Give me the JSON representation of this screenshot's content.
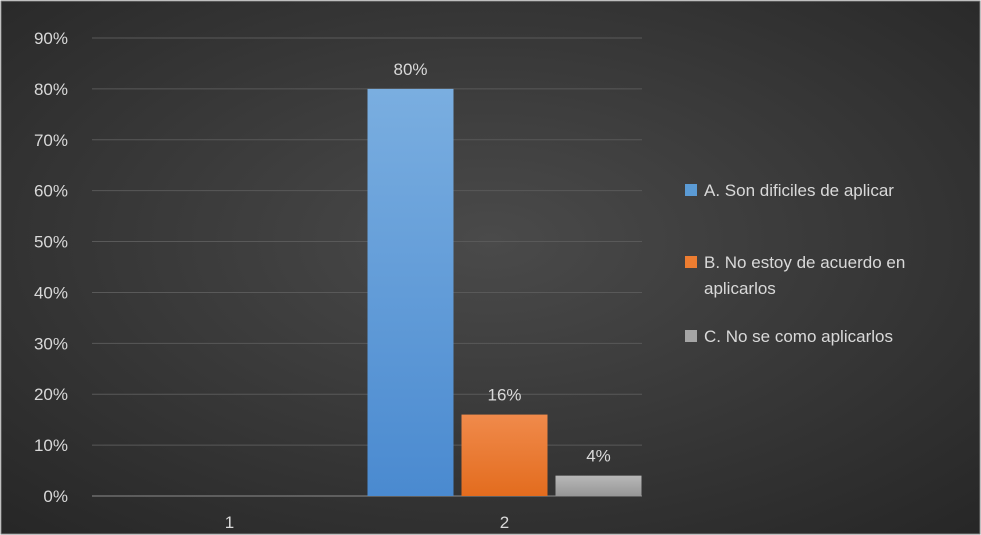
{
  "chart_data": {
    "type": "bar",
    "categories": [
      "1",
      "2"
    ],
    "series": [
      {
        "name": "A. Son dificiles de aplicar",
        "values": [
          null,
          0.8
        ],
        "labels": [
          "",
          "80%"
        ],
        "color": "#5b9bd5"
      },
      {
        "name": "B. No estoy de acuerdo en aplicarlos",
        "values": [
          null,
          0.16
        ],
        "labels": [
          "",
          "16%"
        ],
        "color": "#ed7d31"
      },
      {
        "name": "C. No se como aplicarlos",
        "values": [
          null,
          0.04
        ],
        "labels": [
          "",
          "4%"
        ],
        "color": "#a5a5a5"
      }
    ],
    "ylim": [
      0,
      0.9
    ],
    "yticks": [
      0,
      0.1,
      0.2,
      0.3,
      0.4,
      0.5,
      0.6,
      0.7,
      0.8,
      0.9
    ],
    "ytick_labels": [
      "0%",
      "10%",
      "20%",
      "30%",
      "40%",
      "50%",
      "60%",
      "70%",
      "80%",
      "90%"
    ],
    "legend_lines": [
      [
        "A. Son dificiles de aplicar"
      ],
      [
        "B. No estoy de acuerdo en",
        "aplicarlos"
      ],
      [
        "C. No se como aplicarlos"
      ]
    ],
    "legend_position": "right",
    "grid": true,
    "background": "#333333",
    "grid_color": "#595959",
    "text_color": "#d9d9d9"
  }
}
